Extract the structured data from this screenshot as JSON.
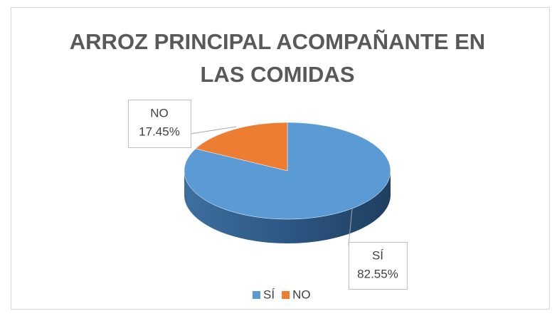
{
  "chart_data": {
    "type": "pie3d",
    "title": "ARROZ PRINCIPAL ACOMPAÑANTE EN LAS COMIDAS",
    "categories": [
      "SÍ",
      "NO"
    ],
    "values": [
      82.55,
      17.45
    ],
    "value_labels": [
      "82.55%",
      "17.45%"
    ],
    "colors": [
      "#5b9bd5",
      "#ed7d31"
    ],
    "legend": "bottom"
  }
}
